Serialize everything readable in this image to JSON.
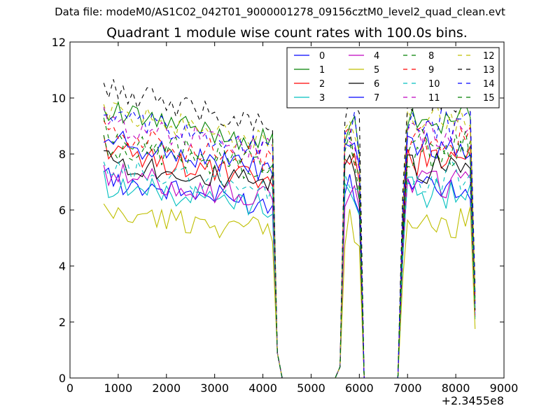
{
  "suptitle": "Data file: modeM0/AS1C02_042T01_9000001278_09156cztM0_level2_quad_clean.evt",
  "chart_data": {
    "type": "line",
    "title": "Quadrant 1 module wise count rates with 100.0s bins.",
    "xlabel": "",
    "ylabel": "",
    "x_offset_label": "+2.3455e8",
    "xlim": [
      0,
      9000
    ],
    "ylim": [
      0,
      12
    ],
    "xticks": [
      0,
      1000,
      2000,
      3000,
      4000,
      5000,
      6000,
      7000,
      8000,
      9000
    ],
    "yticks": [
      0,
      2,
      4,
      6,
      8,
      10,
      12
    ],
    "grid": false,
    "legend": {
      "placement": "top-right",
      "columns": 4
    },
    "segments": [
      {
        "start": 700,
        "end": 4200,
        "step": 100
      },
      {
        "start": 5700,
        "end": 5900,
        "step": 100
      },
      {
        "start": 6900,
        "end": 8400,
        "step": 100
      }
    ],
    "gap_points": [
      [
        4300,
        0.9
      ],
      [
        4400,
        0
      ],
      [
        5500,
        0
      ],
      [
        5600,
        0.4
      ]
    ],
    "gap_tail_points": [
      [
        6100,
        0
      ],
      [
        6200,
        0
      ],
      [
        6800,
        0
      ]
    ],
    "series": [
      {
        "name": "0",
        "color": "#0000ff",
        "dash": "solid",
        "level": 6.2,
        "drop": 0.6
      },
      {
        "name": "1",
        "color": "#008000",
        "dash": "solid",
        "level": 8.6,
        "drop": 0.7
      },
      {
        "name": "2",
        "color": "#ff0000",
        "dash": "solid",
        "level": 7.2,
        "drop": 0.7
      },
      {
        "name": "3",
        "color": "#00bfbf",
        "dash": "solid",
        "level": 6.0,
        "drop": 0.5
      },
      {
        "name": "4",
        "color": "#bf00bf",
        "dash": "solid",
        "level": 6.4,
        "drop": 0.6
      },
      {
        "name": "5",
        "color": "#bfbf00",
        "dash": "solid",
        "level": 5.0,
        "drop": 0.4
      },
      {
        "name": "6",
        "color": "#000000",
        "dash": "solid",
        "level": 6.9,
        "drop": 0.6
      },
      {
        "name": "7",
        "color": "#0000ff",
        "dash": "solid",
        "level": 7.6,
        "drop": 0.7
      },
      {
        "name": "8",
        "color": "#008000",
        "dash": "dashed",
        "level": 7.4,
        "drop": 0.6
      },
      {
        "name": "9",
        "color": "#ff0000",
        "dash": "dashed",
        "level": 7.9,
        "drop": 0.7
      },
      {
        "name": "10",
        "color": "#00bfbf",
        "dash": "dashed",
        "level": 6.6,
        "drop": 0.5
      },
      {
        "name": "11",
        "color": "#bf00bf",
        "dash": "dashed",
        "level": 8.2,
        "drop": 0.6
      },
      {
        "name": "12",
        "color": "#bfbf00",
        "dash": "dashed",
        "level": 8.7,
        "drop": 0.8
      },
      {
        "name": "13",
        "color": "#000000",
        "dash": "dashed",
        "level": 9.4,
        "drop": 0.8
      },
      {
        "name": "14",
        "color": "#0000ff",
        "dash": "dashed",
        "level": 8.4,
        "drop": 0.7
      },
      {
        "name": "15",
        "color": "#008000",
        "dash": "dashed",
        "level": 7.7,
        "drop": 0.6
      }
    ]
  }
}
